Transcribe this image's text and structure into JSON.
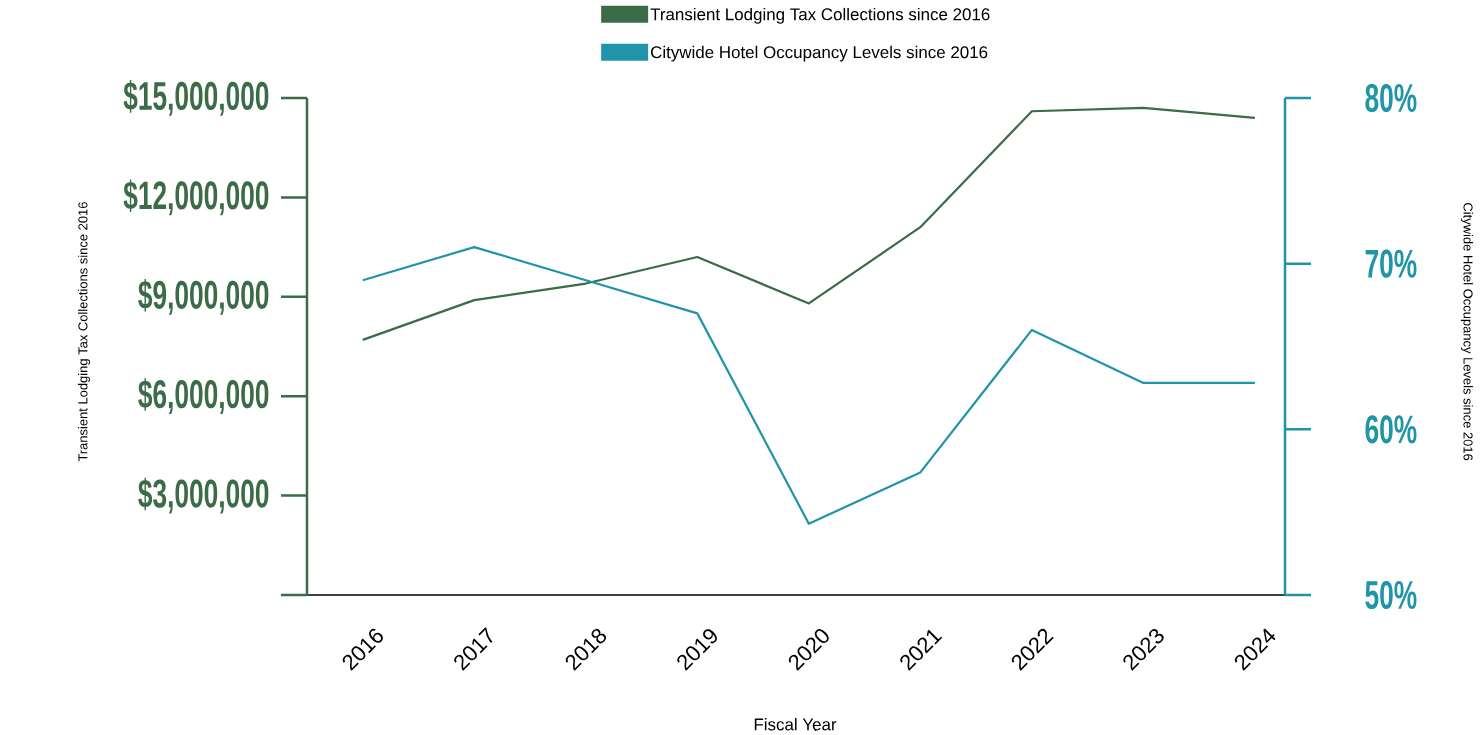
{
  "chart_data": {
    "type": "line",
    "categories": [
      "2016",
      "2017",
      "2018",
      "2019",
      "2020",
      "2021",
      "2022",
      "2023",
      "2024"
    ],
    "series": [
      {
        "name": "Transient Lodging Tax Collections since 2016",
        "color": "#3b6b47",
        "values": [
          7700000,
          8900000,
          9400000,
          10200000,
          8800000,
          11100000,
          14600000,
          14700000,
          14400000
        ]
      },
      {
        "name": "Citywide Hotel Occupancy Levels since 2016",
        "color": "#2094a8",
        "axis": "y2",
        "values": [
          69,
          71,
          69,
          67,
          54.3,
          57.4,
          66,
          62.8,
          62.8
        ]
      }
    ],
    "xlabel": "Fiscal Year",
    "ylabel": "Transient Lodging Tax Collections since 2016",
    "y2label": "Citywide Hotel Occupancy Levels since 2016",
    "ylim": [
      0,
      15000000
    ],
    "yticks": [
      {
        "value": 0,
        "label": null
      },
      {
        "value": 3000000,
        "label": "$3,000,000"
      },
      {
        "value": 6000000,
        "label": "$6,000,000"
      },
      {
        "value": 9000000,
        "label": "$9,000,000"
      },
      {
        "value": 12000000,
        "label": "$12,000,000"
      },
      {
        "value": 15000000,
        "label": "$15,000,000"
      }
    ],
    "y2lim": [
      50,
      80
    ],
    "y2ticks": [
      {
        "value": 50,
        "label": "50%"
      },
      {
        "value": 60,
        "label": "60%"
      },
      {
        "value": 70,
        "label": "70%"
      },
      {
        "value": 80,
        "label": "80%"
      }
    ],
    "legend": "top",
    "grid": false,
    "marker": "none",
    "line_style": "solid"
  }
}
